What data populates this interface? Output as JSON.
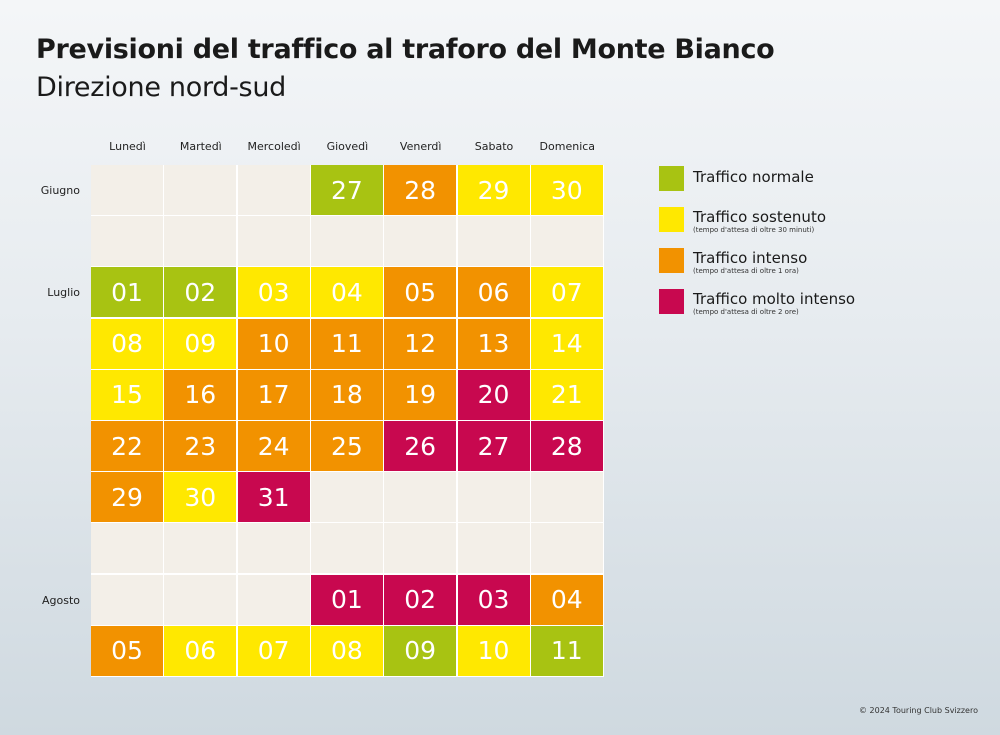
{
  "title": "Previsioni del traffico al traforo del Monte Bianco",
  "subtitle": "Direzione nord-sud",
  "credit": "© 2024 Touring Club Svizzero",
  "chart_data": {
    "type": "table",
    "days": [
      "Lunedì",
      "Martedì",
      "Mercoledì",
      "Giovedì",
      "Venerdì",
      "Sabato",
      "Domenica"
    ],
    "months": [
      {
        "label": "Giugno",
        "row": 0
      },
      {
        "label": "Luglio",
        "row": 2
      },
      {
        "label": "Agosto",
        "row": 8
      }
    ],
    "colors": {
      "normale": "#a8c312",
      "sostenuto": "#ffe800",
      "intenso": "#f29200",
      "molto": "#c8084f",
      "empty": "#f3efe8"
    },
    "legend": [
      {
        "key": "normale",
        "label": "Traffico normale",
        "note": ""
      },
      {
        "key": "sostenuto",
        "label": "Traffico sostenuto",
        "note": "(tempo d'attesa di oltre 30 minuti)"
      },
      {
        "key": "intenso",
        "label": "Traffico intenso",
        "note": "(tempo d'attesa di oltre 1 ora)"
      },
      {
        "key": "molto",
        "label": "Traffico molto intenso",
        "note": "(tempo d'attesa di oltre 2 ore)"
      }
    ],
    "rows": [
      [
        null,
        null,
        null,
        [
          "27",
          "normale"
        ],
        [
          "28",
          "intenso"
        ],
        [
          "29",
          "sostenuto"
        ],
        [
          "30",
          "sostenuto"
        ]
      ],
      [
        null,
        null,
        null,
        null,
        null,
        null,
        null
      ],
      [
        [
          "01",
          "normale"
        ],
        [
          "02",
          "normale"
        ],
        [
          "03",
          "sostenuto"
        ],
        [
          "04",
          "sostenuto"
        ],
        [
          "05",
          "intenso"
        ],
        [
          "06",
          "intenso"
        ],
        [
          "07",
          "sostenuto"
        ]
      ],
      [
        [
          "08",
          "sostenuto"
        ],
        [
          "09",
          "sostenuto"
        ],
        [
          "10",
          "intenso"
        ],
        [
          "11",
          "intenso"
        ],
        [
          "12",
          "intenso"
        ],
        [
          "13",
          "intenso"
        ],
        [
          "14",
          "sostenuto"
        ]
      ],
      [
        [
          "15",
          "sostenuto"
        ],
        [
          "16",
          "intenso"
        ],
        [
          "17",
          "intenso"
        ],
        [
          "18",
          "intenso"
        ],
        [
          "19",
          "intenso"
        ],
        [
          "20",
          "molto"
        ],
        [
          "21",
          "sostenuto"
        ]
      ],
      [
        [
          "22",
          "intenso"
        ],
        [
          "23",
          "intenso"
        ],
        [
          "24",
          "intenso"
        ],
        [
          "25",
          "intenso"
        ],
        [
          "26",
          "molto"
        ],
        [
          "27",
          "molto"
        ],
        [
          "28",
          "molto"
        ]
      ],
      [
        [
          "29",
          "intenso"
        ],
        [
          "30",
          "sostenuto"
        ],
        [
          "31",
          "molto"
        ],
        null,
        null,
        null,
        null
      ],
      [
        null,
        null,
        null,
        null,
        null,
        null,
        null
      ],
      [
        null,
        null,
        null,
        [
          "01",
          "molto"
        ],
        [
          "02",
          "molto"
        ],
        [
          "03",
          "molto"
        ],
        [
          "04",
          "intenso"
        ]
      ],
      [
        [
          "05",
          "intenso"
        ],
        [
          "06",
          "sostenuto"
        ],
        [
          "07",
          "sostenuto"
        ],
        [
          "08",
          "sostenuto"
        ],
        [
          "09",
          "normale"
        ],
        [
          "10",
          "sostenuto"
        ],
        [
          "11",
          "normale"
        ]
      ]
    ]
  }
}
